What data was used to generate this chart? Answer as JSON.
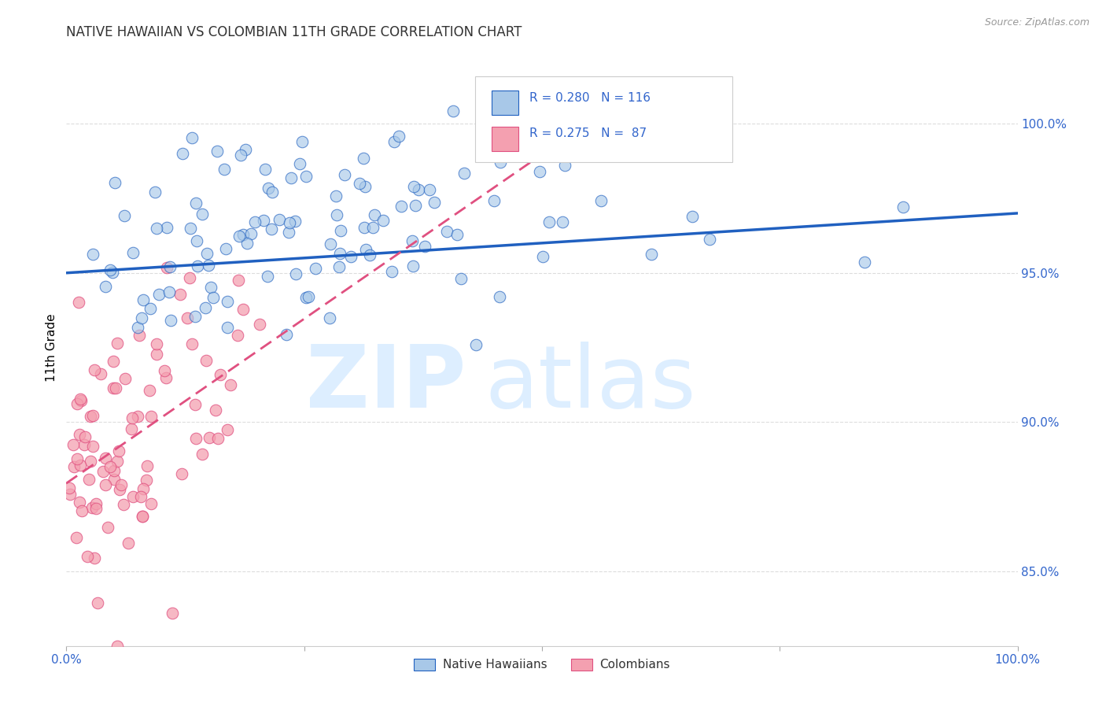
{
  "title": "NATIVE HAWAIIAN VS COLOMBIAN 11TH GRADE CORRELATION CHART",
  "source": "Source: ZipAtlas.com",
  "ylabel": "11th Grade",
  "y_ticks": [
    0.85,
    0.9,
    0.95,
    1.0
  ],
  "y_tick_labels": [
    "85.0%",
    "90.0%",
    "95.0%",
    "100.0%"
  ],
  "xlim": [
    0.0,
    1.0
  ],
  "ylim": [
    0.825,
    1.025
  ],
  "blue_color": "#a8c8e8",
  "pink_color": "#f4a0b0",
  "line_blue": "#2060c0",
  "line_pink": "#e05080",
  "grid_color": "#dddddd",
  "title_color": "#333333",
  "tick_color": "#3366cc",
  "source_color": "#999999",
  "watermark_color": "#ddeeff",
  "legend_text_color": "#3366cc",
  "legend_border_color": "#cccccc"
}
